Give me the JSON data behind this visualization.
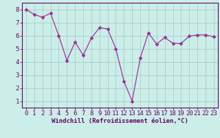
{
  "x": [
    0,
    1,
    2,
    3,
    4,
    5,
    6,
    7,
    8,
    9,
    10,
    11,
    12,
    13,
    14,
    15,
    16,
    17,
    18,
    19,
    20,
    21,
    22,
    23
  ],
  "y": [
    8.0,
    7.6,
    7.4,
    7.7,
    6.0,
    4.1,
    5.5,
    4.5,
    5.8,
    6.6,
    6.5,
    5.0,
    2.5,
    1.0,
    4.3,
    6.2,
    5.35,
    5.85,
    5.4,
    5.4,
    5.95,
    6.05,
    6.05,
    5.9
  ],
  "line_color": "#993399",
  "marker": "D",
  "marker_size": 2.5,
  "bg_color": "#cceee8",
  "grid_color": "#aacccc",
  "xlabel": "Windchill (Refroidissement éolien,°C)",
  "ylabel_ticks": [
    1,
    2,
    3,
    4,
    5,
    6,
    7,
    8
  ],
  "xlim": [
    -0.5,
    23.5
  ],
  "ylim": [
    0.5,
    8.5
  ],
  "xlabel_fontsize": 6.5,
  "tick_fontsize": 6.5,
  "axis_label_color": "#660066",
  "tick_color": "#660066",
  "spine_color": "#660066"
}
